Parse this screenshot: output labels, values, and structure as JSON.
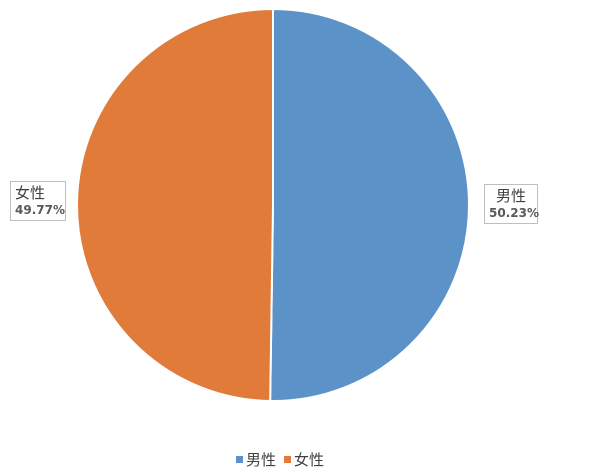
{
  "chart_data": {
    "type": "pie",
    "title": "",
    "categories": [
      "男性",
      "女性"
    ],
    "values": [
      50.23,
      49.77
    ],
    "labels": [
      "50.23%",
      "49.77%"
    ],
    "colors": [
      "#5b93c9",
      "#e07b39"
    ],
    "legend": "bottom",
    "start_angle": "top",
    "direction": "clockwise"
  },
  "legend": {
    "items": [
      {
        "label": "男性",
        "color": "#5b93c9"
      },
      {
        "label": "女性",
        "color": "#e07b39"
      }
    ]
  }
}
